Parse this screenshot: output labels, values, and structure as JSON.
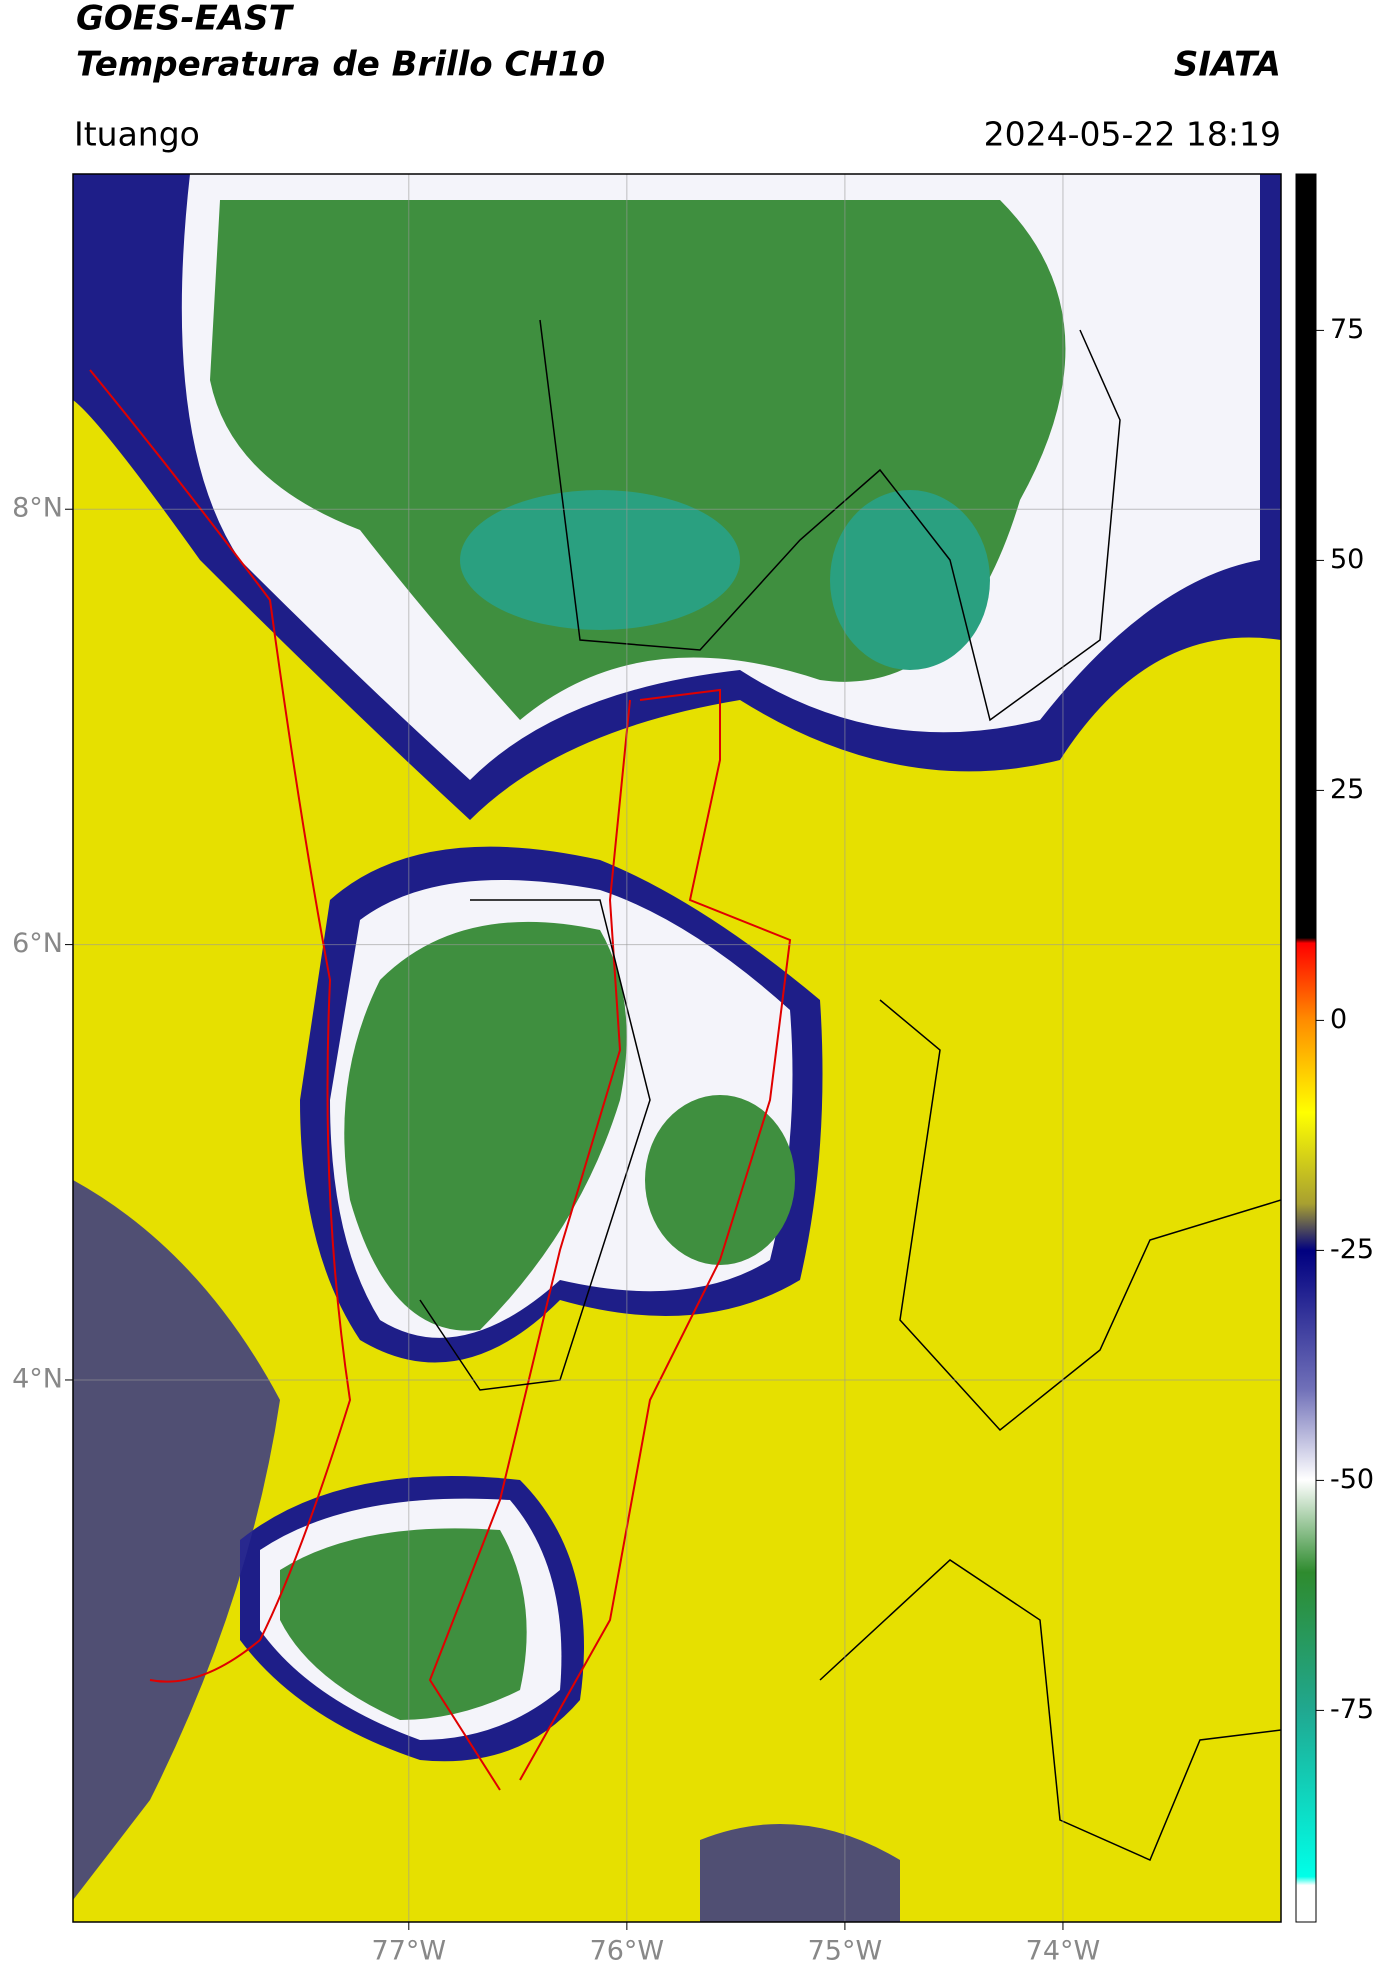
{
  "chart_data": {
    "type": "map",
    "title": "GOES-EAST",
    "subtitle": "Temperatura de Brillo CH10",
    "source": "SIATA",
    "location": "Ituango",
    "datetime": "2024-05-22 18:19",
    "xlim": [
      -78.54,
      -73.0
    ],
    "ylim": [
      1.51,
      9.54
    ],
    "xticks": [
      {
        "value": -77,
        "label": "77°W"
      },
      {
        "value": -76,
        "label": "76°W"
      },
      {
        "value": -75,
        "label": "75°W"
      },
      {
        "value": -74,
        "label": "74°W"
      }
    ],
    "yticks": [
      {
        "value": 4,
        "label": "4°N"
      },
      {
        "value": 6,
        "label": "6°N"
      },
      {
        "value": 8,
        "label": "8°N"
      }
    ],
    "colorbar_lim": [
      -98,
      92
    ],
    "colorbar_ticks": [
      -75,
      -50,
      -25,
      0,
      25,
      50,
      75
    ],
    "grid": true
  }
}
